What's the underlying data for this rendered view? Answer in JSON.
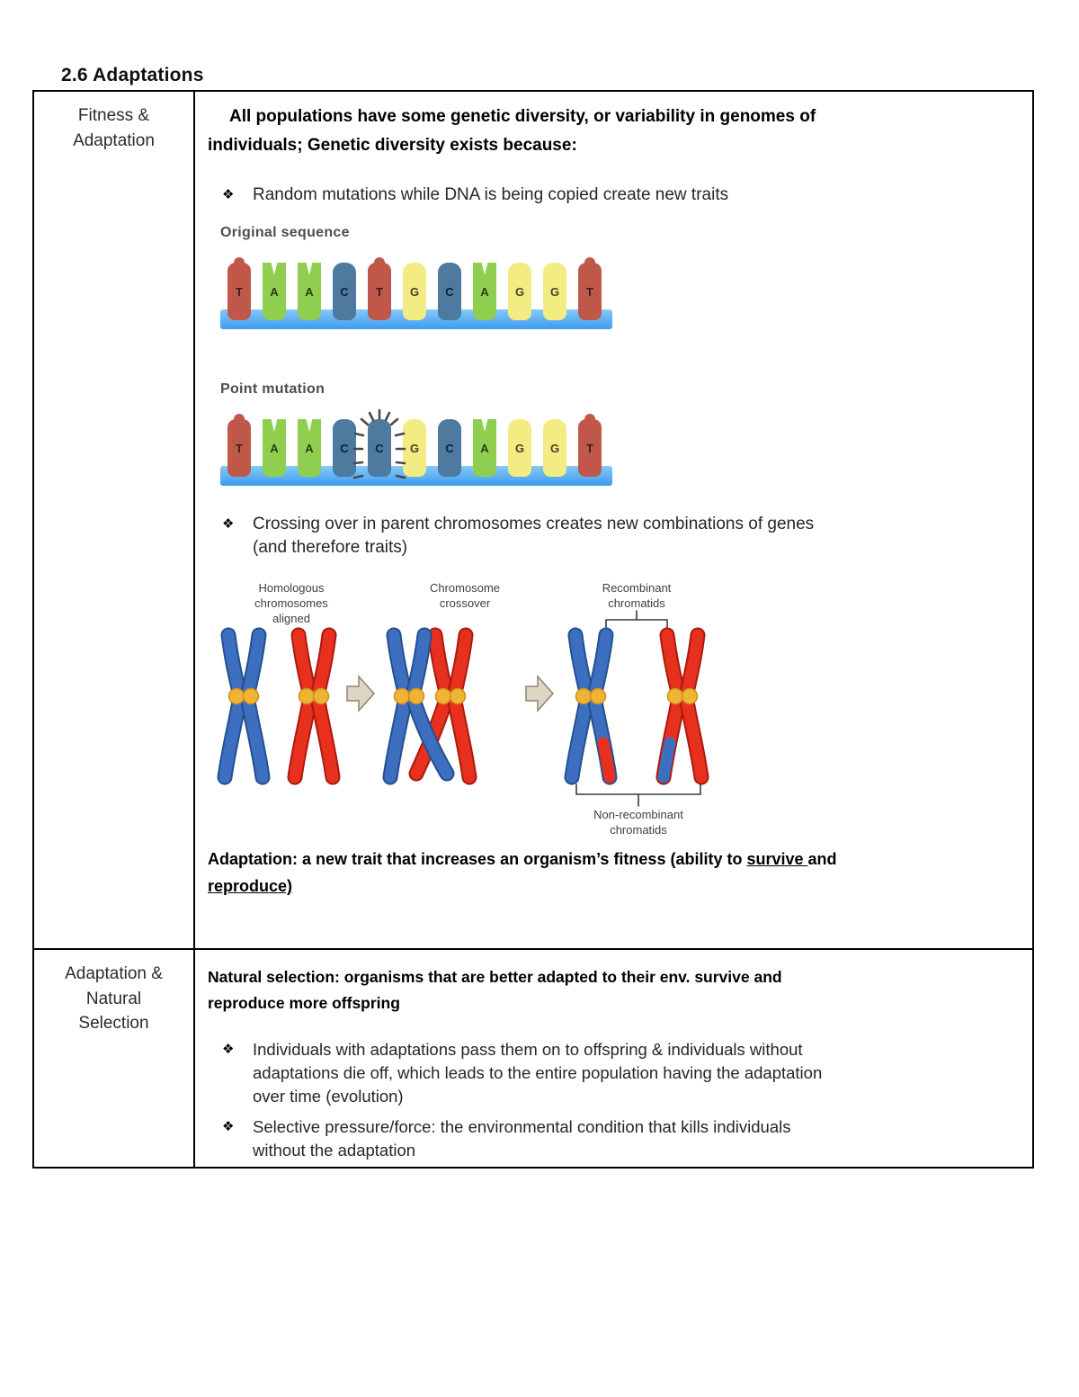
{
  "title": "2.6 Adaptations",
  "bullet_glyph": "❖",
  "colors": {
    "base_red": "#c0584a",
    "base_green": "#8fce4e",
    "base_blue": "#4d7a9e",
    "base_yellow": "#f2ec82",
    "strand_top": "#85c9f8",
    "strand_bottom": "#3d9bef",
    "chr_blue": "#3d6fc1",
    "chr_blue_dark": "#24508f",
    "chr_red": "#e8301f",
    "chr_red_dark": "#ab1a0e",
    "centromere": "#f0b434",
    "centromere_edge": "#cf8f1e",
    "arrow_fill": "#ded5c2",
    "arrow_edge": "#8d8575"
  },
  "row1": {
    "header": "Fitness &\nAdaptation",
    "intro": "All populations have some genetic diversity, or variability in genomes of\nindividuals; Genetic diversity exists because:",
    "bullet1": "Random mutations while DNA is being copied create new traits",
    "bullet2": "Crossing over in parent chromosomes creates new combinations of genes\n(and therefore traits)",
    "dna": {
      "original": {
        "label": "Original sequence",
        "bases": [
          {
            "letter": "T",
            "color": "red"
          },
          {
            "letter": "A",
            "color": "green"
          },
          {
            "letter": "A",
            "color": "green"
          },
          {
            "letter": "C",
            "color": "blue"
          },
          {
            "letter": "T",
            "color": "red"
          },
          {
            "letter": "G",
            "color": "yellow"
          },
          {
            "letter": "C",
            "color": "blue"
          },
          {
            "letter": "A",
            "color": "green"
          },
          {
            "letter": "G",
            "color": "yellow"
          },
          {
            "letter": "G",
            "color": "yellow"
          },
          {
            "letter": "T",
            "color": "red"
          }
        ]
      },
      "mutation": {
        "label": "Point mutation",
        "bases": [
          {
            "letter": "T",
            "color": "red"
          },
          {
            "letter": "A",
            "color": "green"
          },
          {
            "letter": "A",
            "color": "green"
          },
          {
            "letter": "C",
            "color": "blue"
          },
          {
            "letter": "C",
            "color": "blue",
            "highlight": true
          },
          {
            "letter": "G",
            "color": "yellow"
          },
          {
            "letter": "C",
            "color": "blue"
          },
          {
            "letter": "A",
            "color": "green"
          },
          {
            "letter": "G",
            "color": "yellow"
          },
          {
            "letter": "G",
            "color": "yellow"
          },
          {
            "letter": "T",
            "color": "red"
          }
        ]
      }
    },
    "crossover": {
      "labels": {
        "stage1": "Homologous\nchromosomes\naligned",
        "stage2": "Chromosome\ncrossover",
        "stage3": "Recombinant\nchromatids",
        "bottom": "Non-recombinant\nchromatids"
      }
    },
    "adaptation_def": {
      "pre": "Adaptation: a new trait that increases an organism’s fitness (ability to ",
      "underline1": "survive ",
      "mid": "and\n",
      "underline2": "reproduce)"
    }
  },
  "row2": {
    "header": "Adaptation &\nNatural\nSelection",
    "intro": "Natural selection: organisms that are better adapted to their env. survive and\nreproduce more offspring",
    "bullet1": "Individuals with adaptations pass them on to offspring & individuals without\nadaptations die off, which leads to the entire population having the adaptation\nover time (evolution)",
    "bullet2": "Selective pressure/force: the environmental condition that kills individuals\nwithout the adaptation"
  }
}
